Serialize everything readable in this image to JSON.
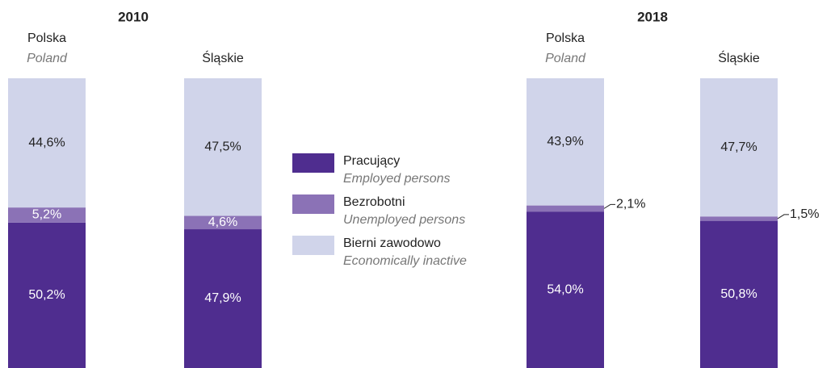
{
  "chart_data": [
    {
      "type": "bar",
      "stacked": true,
      "title": "2010",
      "categories": [
        "Polska",
        "Śląskie"
      ],
      "categories_en": [
        "Poland",
        null
      ],
      "series": [
        {
          "name": "Pracujący",
          "name_en": "Employed persons",
          "color": "#4f2d8f",
          "values": [
            50.2,
            47.9
          ],
          "value_labels": [
            "50,2%",
            "47,9%"
          ]
        },
        {
          "name": "Bezrobotni",
          "name_en": "Unemployed persons",
          "color": "#8b72b6",
          "values": [
            5.2,
            4.6
          ],
          "value_labels": [
            "5,2%",
            "4,6%"
          ]
        },
        {
          "name": "Bierni zawodowo",
          "name_en": "Economically inactive",
          "color": "#d0d4ea",
          "values": [
            44.6,
            47.5
          ],
          "value_labels": [
            "44,6%",
            "47,5%"
          ]
        }
      ]
    },
    {
      "type": "bar",
      "stacked": true,
      "title": "2018",
      "categories": [
        "Polska",
        "Śląskie"
      ],
      "categories_en": [
        "Poland",
        null
      ],
      "series": [
        {
          "color": "#4f2d8f",
          "values": [
            54.0,
            50.8
          ],
          "value_labels": [
            "54,0%",
            "50,8%"
          ]
        },
        {
          "color": "#8b72b6",
          "values": [
            2.1,
            1.5
          ],
          "value_labels": [
            "2,1%",
            "1,5%"
          ]
        },
        {
          "color": "#d0d4ea",
          "values": [
            43.9,
            47.7
          ],
          "value_labels": [
            "43,9%",
            "47,7%"
          ]
        }
      ]
    }
  ]
}
